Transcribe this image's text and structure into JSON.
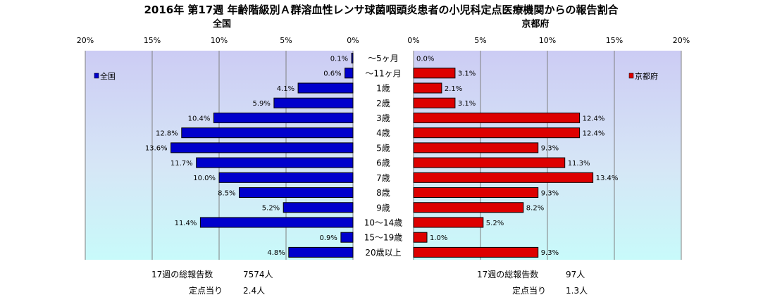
{
  "chart_data": {
    "type": "bar",
    "orientation": "horizontal-butterfly",
    "title": "2016年 第17週 年齢階級別Ａ群溶血性レンサ球菌咽頭炎患者の小児科定点医療機関からの報告割合",
    "categories": [
      "～5ヶ月",
      "～11ヶ月",
      "1歳",
      "2歳",
      "3歳",
      "4歳",
      "5歳",
      "6歳",
      "7歳",
      "8歳",
      "9歳",
      "10～14歳",
      "15～19歳",
      "20歳以上"
    ],
    "tick_labels": [
      "0%",
      "5%",
      "10%",
      "15%",
      "20%"
    ],
    "xlim": [
      0,
      20
    ],
    "unit": "%",
    "grid": true,
    "panels": [
      {
        "subtitle": "全国",
        "legend": "全国",
        "legend_position": "top-left",
        "direction": "left",
        "color": "#0000cc",
        "values": [
          0.1,
          0.6,
          4.1,
          5.9,
          10.4,
          12.8,
          13.6,
          11.7,
          10.0,
          8.5,
          5.2,
          11.4,
          0.9,
          4.8
        ],
        "value_labels": [
          "0.1%",
          "0.6%",
          "4.1%",
          "5.9%",
          "10.4%",
          "12.8%",
          "13.6%",
          "11.7%",
          "10.0%",
          "8.5%",
          "5.2%",
          "11.4%",
          "0.9%",
          "4.8%"
        ],
        "footer": {
          "total_label": "17週の総報告数",
          "total_value": "7574人",
          "per_label": "定点当り",
          "per_value": "2.4人"
        }
      },
      {
        "subtitle": "京都府",
        "legend": "京都府",
        "legend_position": "top-right",
        "direction": "right",
        "color": "#dd0000",
        "values": [
          0.0,
          3.1,
          2.1,
          3.1,
          12.4,
          12.4,
          9.3,
          11.3,
          13.4,
          9.3,
          8.2,
          5.2,
          1.0,
          9.3
        ],
        "value_labels": [
          "0.0%",
          "3.1%",
          "2.1%",
          "3.1%",
          "12.4%",
          "12.4%",
          "9.3%",
          "11.3%",
          "13.4%",
          "9.3%",
          "8.2%",
          "5.2%",
          "1.0%",
          "9.3%"
        ],
        "footer": {
          "total_label": "17週の総報告数",
          "total_value": "97人",
          "per_label": "定点当り",
          "per_value": "1.3人"
        }
      }
    ]
  }
}
